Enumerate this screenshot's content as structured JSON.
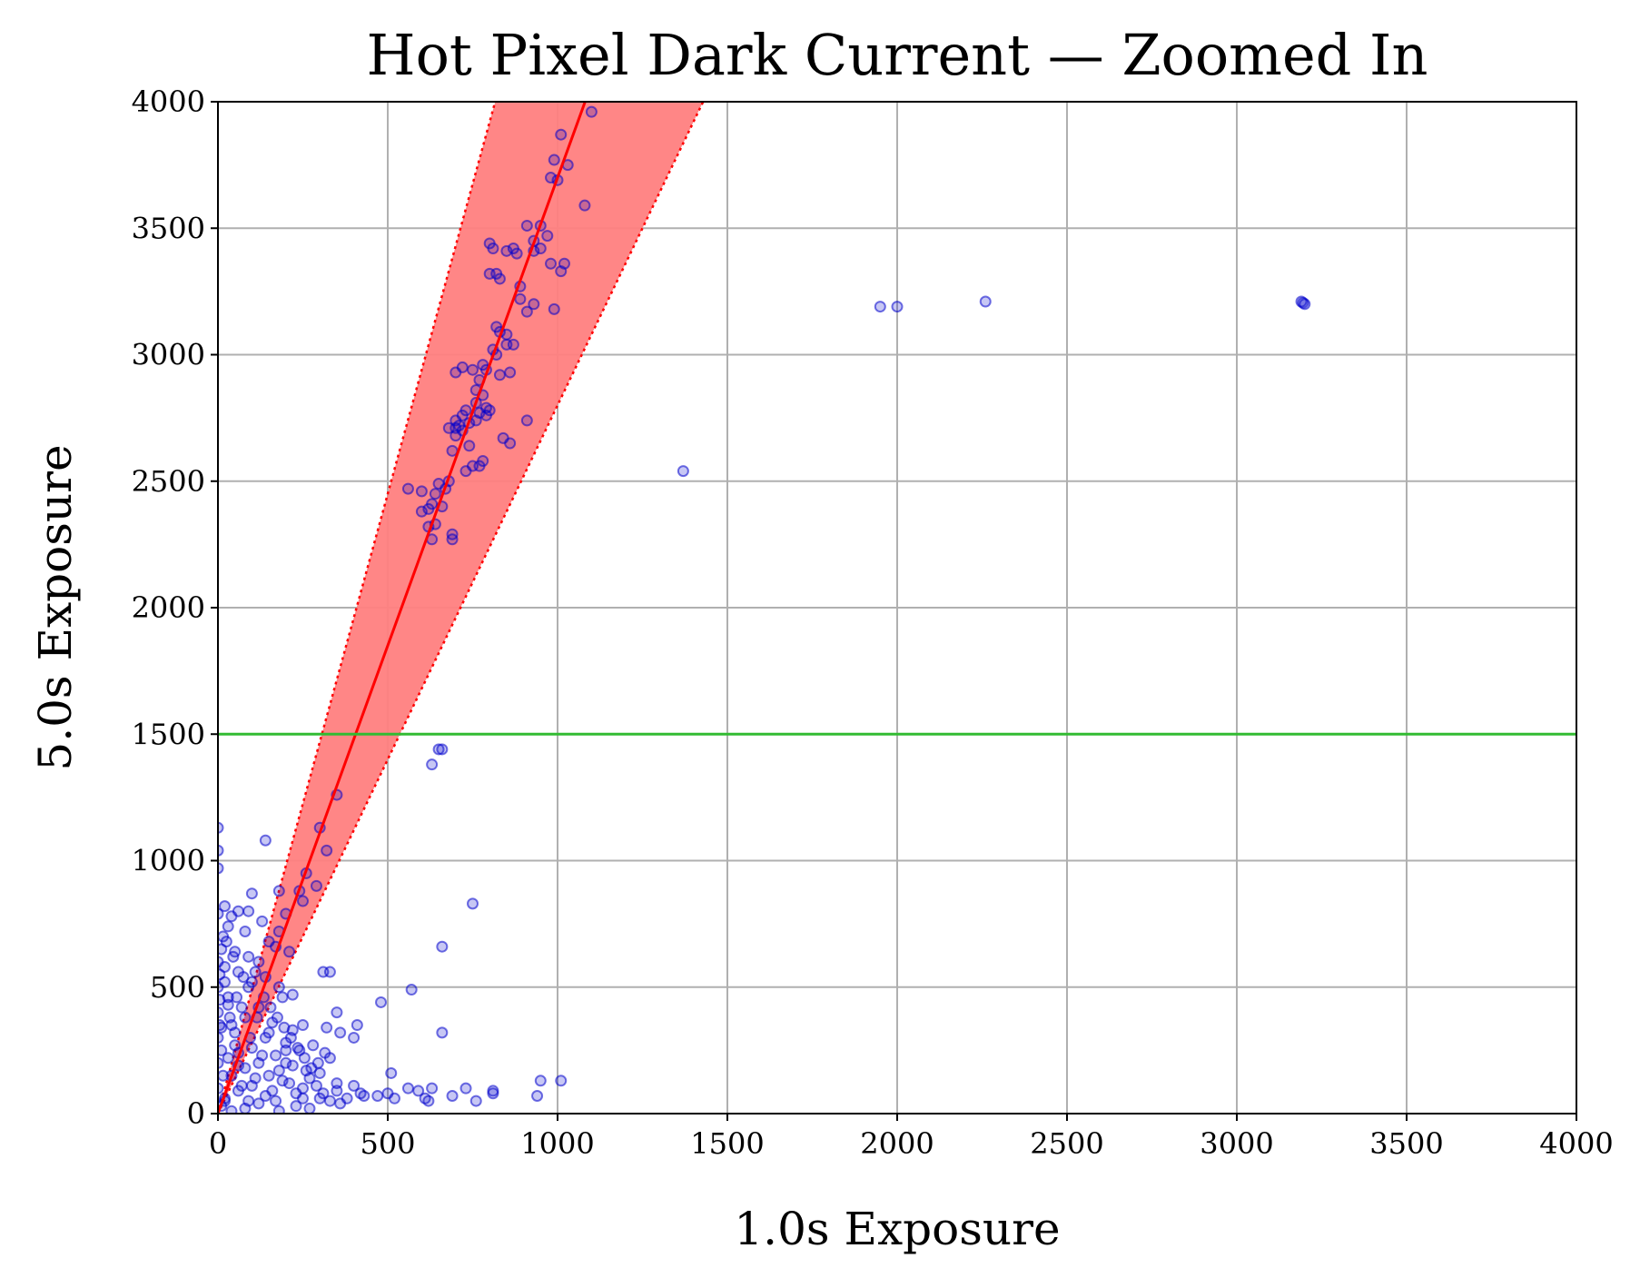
{
  "chart_data": {
    "type": "scatter",
    "title": "Hot Pixel Dark Current — Zoomed In",
    "xlabel": "1.0s Exposure",
    "ylabel": "5.0s Exposure",
    "xlim": [
      0,
      4000
    ],
    "ylim": [
      0,
      4000
    ],
    "xticks": [
      0,
      500,
      1000,
      1500,
      2000,
      2500,
      3000,
      3500,
      4000
    ],
    "yticks": [
      0,
      500,
      1000,
      1500,
      2000,
      2500,
      3000,
      3500,
      4000
    ],
    "grid": true,
    "colors": {
      "points": "#0000cc",
      "fit_line": "#ff0000",
      "band_fill": "#ff8080",
      "threshold_line": "#33bb33"
    },
    "fit_line": {
      "slope": 3.7,
      "intercept": 0
    },
    "band": {
      "upper_slope": 4.9,
      "lower_slope": 2.8
    },
    "threshold_y": 1500,
    "points": [
      [
        1100,
        3960
      ],
      [
        1010,
        3870
      ],
      [
        1030,
        3750
      ],
      [
        990,
        3770
      ],
      [
        980,
        3700
      ],
      [
        1000,
        3690
      ],
      [
        1080,
        3590
      ],
      [
        910,
        3510
      ],
      [
        950,
        3510
      ],
      [
        970,
        3470
      ],
      [
        930,
        3450
      ],
      [
        930,
        3410
      ],
      [
        950,
        3420
      ],
      [
        800,
        3440
      ],
      [
        810,
        3420
      ],
      [
        850,
        3410
      ],
      [
        870,
        3420
      ],
      [
        880,
        3400
      ],
      [
        1020,
        3360
      ],
      [
        1010,
        3330
      ],
      [
        980,
        3360
      ],
      [
        820,
        3320
      ],
      [
        800,
        3320
      ],
      [
        830,
        3300
      ],
      [
        890,
        3270
      ],
      [
        890,
        3220
      ],
      [
        930,
        3200
      ],
      [
        910,
        3170
      ],
      [
        990,
        3180
      ],
      [
        820,
        3110
      ],
      [
        830,
        3090
      ],
      [
        850,
        3080
      ],
      [
        870,
        3040
      ],
      [
        850,
        3040
      ],
      [
        810,
        3020
      ],
      [
        820,
        3000
      ],
      [
        780,
        2960
      ],
      [
        790,
        2940
      ],
      [
        750,
        2940
      ],
      [
        720,
        2950
      ],
      [
        700,
        2930
      ],
      [
        860,
        2930
      ],
      [
        830,
        2920
      ],
      [
        770,
        2900
      ],
      [
        760,
        2860
      ],
      [
        780,
        2840
      ],
      [
        760,
        2810
      ],
      [
        790,
        2790
      ],
      [
        800,
        2780
      ],
      [
        770,
        2770
      ],
      [
        790,
        2760
      ],
      [
        730,
        2780
      ],
      [
        720,
        2760
      ],
      [
        700,
        2740
      ],
      [
        710,
        2720
      ],
      [
        740,
        2730
      ],
      [
        760,
        2740
      ],
      [
        910,
        2740
      ],
      [
        700,
        2710
      ],
      [
        680,
        2710
      ],
      [
        720,
        2700
      ],
      [
        700,
        2680
      ],
      [
        840,
        2670
      ],
      [
        860,
        2650
      ],
      [
        740,
        2640
      ],
      [
        690,
        2620
      ],
      [
        780,
        2580
      ],
      [
        770,
        2560
      ],
      [
        750,
        2560
      ],
      [
        730,
        2540
      ],
      [
        1370,
        2540
      ],
      [
        680,
        2500
      ],
      [
        650,
        2490
      ],
      [
        670,
        2470
      ],
      [
        640,
        2450
      ],
      [
        630,
        2410
      ],
      [
        660,
        2400
      ],
      [
        600,
        2380
      ],
      [
        560,
        2470
      ],
      [
        600,
        2460
      ],
      [
        640,
        2330
      ],
      [
        620,
        2320
      ],
      [
        620,
        2390
      ],
      [
        690,
        2290
      ],
      [
        690,
        2270
      ],
      [
        630,
        2270
      ],
      [
        1950,
        3190
      ],
      [
        2000,
        3190
      ],
      [
        2260,
        3210
      ],
      [
        3190,
        3210
      ],
      [
        3200,
        3200
      ],
      [
        3195,
        3205
      ],
      [
        650,
        1440
      ],
      [
        660,
        1440
      ],
      [
        630,
        1380
      ],
      [
        350,
        1260
      ],
      [
        140,
        1080
      ],
      [
        300,
        1130
      ],
      [
        0,
        1130
      ],
      [
        0,
        1040
      ],
      [
        0,
        970
      ],
      [
        320,
        1040
      ],
      [
        260,
        950
      ],
      [
        290,
        900
      ],
      [
        240,
        880
      ],
      [
        180,
        880
      ],
      [
        250,
        840
      ],
      [
        100,
        870
      ],
      [
        750,
        830
      ],
      [
        20,
        820
      ],
      [
        60,
        800
      ],
      [
        90,
        800
      ],
      [
        40,
        780
      ],
      [
        0,
        790
      ],
      [
        200,
        790
      ],
      [
        130,
        760
      ],
      [
        30,
        740
      ],
      [
        180,
        720
      ],
      [
        80,
        720
      ],
      [
        15,
        700
      ],
      [
        660,
        660
      ],
      [
        150,
        680
      ],
      [
        170,
        660
      ],
      [
        210,
        640
      ],
      [
        50,
        640
      ],
      [
        90,
        620
      ],
      [
        120,
        600
      ],
      [
        310,
        560
      ],
      [
        330,
        560
      ],
      [
        20,
        580
      ],
      [
        60,
        560
      ],
      [
        140,
        540
      ],
      [
        100,
        520
      ],
      [
        180,
        500
      ],
      [
        570,
        490
      ],
      [
        220,
        470
      ],
      [
        190,
        460
      ],
      [
        480,
        440
      ],
      [
        30,
        460
      ],
      [
        120,
        420
      ],
      [
        350,
        400
      ],
      [
        80,
        380
      ],
      [
        160,
        360
      ],
      [
        250,
        350
      ],
      [
        320,
        340
      ],
      [
        410,
        350
      ],
      [
        10,
        340
      ],
      [
        660,
        320
      ],
      [
        360,
        320
      ],
      [
        400,
        300
      ],
      [
        50,
        320
      ],
      [
        140,
        300
      ],
      [
        200,
        280
      ],
      [
        280,
        270
      ],
      [
        240,
        250
      ],
      [
        100,
        260
      ],
      [
        60,
        240
      ],
      [
        170,
        230
      ],
      [
        330,
        220
      ],
      [
        30,
        220
      ],
      [
        120,
        200
      ],
      [
        220,
        190
      ],
      [
        80,
        180
      ],
      [
        260,
        170
      ],
      [
        300,
        160
      ],
      [
        510,
        160
      ],
      [
        150,
        150
      ],
      [
        40,
        150
      ],
      [
        190,
        130
      ],
      [
        950,
        130
      ],
      [
        1010,
        130
      ],
      [
        350,
        120
      ],
      [
        400,
        110
      ],
      [
        560,
        100
      ],
      [
        630,
        100
      ],
      [
        730,
        100
      ],
      [
        810,
        90
      ],
      [
        590,
        90
      ],
      [
        500,
        80
      ],
      [
        100,
        110
      ],
      [
        250,
        100
      ],
      [
        60,
        90
      ],
      [
        420,
        80
      ],
      [
        430,
        70
      ],
      [
        470,
        70
      ],
      [
        520,
        60
      ],
      [
        610,
        60
      ],
      [
        620,
        50
      ],
      [
        690,
        70
      ],
      [
        760,
        50
      ],
      [
        810,
        80
      ],
      [
        940,
        70
      ],
      [
        300,
        60
      ],
      [
        170,
        50
      ],
      [
        20,
        60
      ],
      [
        120,
        40
      ],
      [
        230,
        30
      ],
      [
        80,
        20
      ],
      [
        40,
        10
      ],
      [
        180,
        10
      ],
      [
        10,
        30
      ],
      [
        360,
        40
      ],
      [
        270,
        20
      ],
      [
        140,
        70
      ],
      [
        0,
        600
      ],
      [
        0,
        500
      ],
      [
        0,
        400
      ],
      [
        0,
        300
      ],
      [
        0,
        200
      ],
      [
        0,
        100
      ],
      [
        10,
        650
      ],
      [
        20,
        520
      ],
      [
        30,
        430
      ],
      [
        40,
        350
      ],
      [
        50,
        270
      ],
      [
        60,
        190
      ],
      [
        70,
        110
      ],
      [
        90,
        50
      ],
      [
        110,
        140
      ],
      [
        130,
        230
      ],
      [
        150,
        320
      ],
      [
        70,
        420
      ],
      [
        90,
        500
      ],
      [
        110,
        560
      ],
      [
        45,
        620
      ],
      [
        25,
        680
      ],
      [
        200,
        200
      ],
      [
        210,
        120
      ],
      [
        230,
        80
      ],
      [
        250,
        60
      ],
      [
        270,
        140
      ],
      [
        290,
        110
      ],
      [
        310,
        80
      ],
      [
        330,
        50
      ],
      [
        350,
        90
      ],
      [
        380,
        60
      ],
      [
        160,
        90
      ],
      [
        180,
        170
      ],
      [
        200,
        250
      ],
      [
        220,
        330
      ],
      [
        10,
        250
      ],
      [
        15,
        150
      ],
      [
        20,
        50
      ],
      [
        35,
        380
      ],
      [
        55,
        460
      ],
      [
        75,
        540
      ],
      [
        95,
        300
      ],
      [
        115,
        380
      ],
      [
        135,
        460
      ],
      [
        155,
        420
      ],
      [
        175,
        380
      ],
      [
        195,
        340
      ],
      [
        215,
        300
      ],
      [
        235,
        260
      ],
      [
        255,
        220
      ],
      [
        275,
        180
      ],
      [
        295,
        200
      ],
      [
        315,
        240
      ],
      [
        5,
        450
      ],
      [
        5,
        350
      ],
      [
        5,
        550
      ]
    ]
  }
}
